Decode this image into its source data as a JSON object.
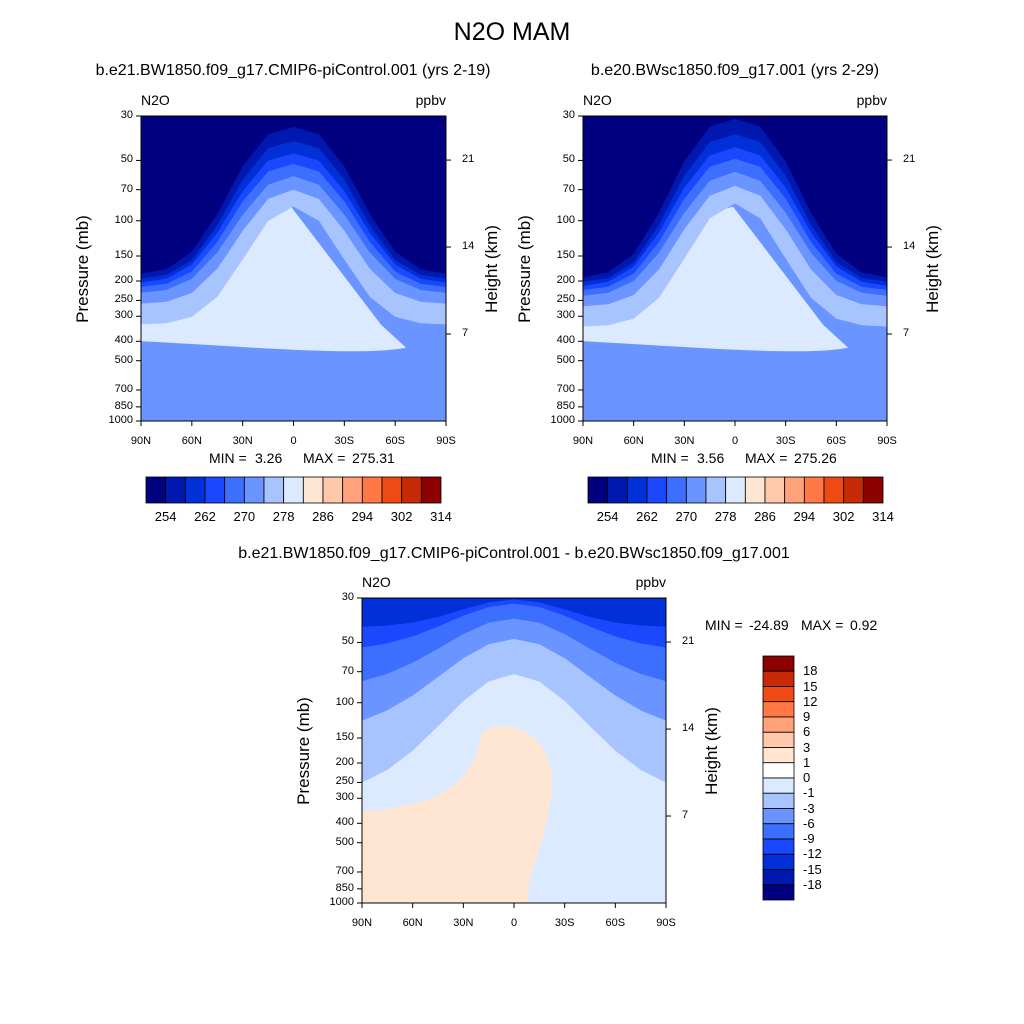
{
  "title": "N2O MAM",
  "chart_data": [
    {
      "type": "heatmap",
      "title": "b.e21.BW1850.f09_g17.CMIP6-piControl.001 (yrs 2-19)",
      "corner_left": "N2O",
      "corner_right": "ppbv",
      "ylabel": "Pressure (mb)",
      "ylabel_right": "Height (km)",
      "x_ticks": [
        "90N",
        "60N",
        "30N",
        "0",
        "30S",
        "60S",
        "90S"
      ],
      "y_ticks": [
        "30",
        "50",
        "70",
        "100",
        "150",
        "200",
        "250",
        "300",
        "400",
        "500",
        "700",
        "850",
        "1000"
      ],
      "y_right_ticks": [
        "21",
        "14",
        "7"
      ],
      "stats": {
        "min_label": "MIN =",
        "min": "3.26",
        "max_label": "MAX =",
        "max": "275.31"
      },
      "colorbar": {
        "labels": [
          "254",
          "262",
          "270",
          "278",
          "286",
          "294",
          "302",
          "314"
        ],
        "colors": [
          "#000080",
          "#0018b0",
          "#0030d8",
          "#1a48ff",
          "#3d6fff",
          "#6a94ff",
          "#a8c4ff",
          "#dceaff",
          "#ffe6d2",
          "#ffc8aa",
          "#ffa27a",
          "#ff7846",
          "#f04a14",
          "#c82a08",
          "#8c0000"
        ]
      }
    },
    {
      "type": "heatmap",
      "title": "b.e20.BWsc1850.f09_g17.001 (yrs 2-29)",
      "corner_left": "N2O",
      "corner_right": "ppbv",
      "ylabel": "Pressure (mb)",
      "ylabel_right": "Height (km)",
      "x_ticks": [
        "90N",
        "60N",
        "30N",
        "0",
        "30S",
        "60S",
        "90S"
      ],
      "y_ticks": [
        "30",
        "50",
        "70",
        "100",
        "150",
        "200",
        "250",
        "300",
        "400",
        "500",
        "700",
        "850",
        "1000"
      ],
      "y_right_ticks": [
        "21",
        "14",
        "7"
      ],
      "stats": {
        "min_label": "MIN =",
        "min": "3.56",
        "max_label": "MAX =",
        "max": "275.26"
      },
      "colorbar": {
        "labels": [
          "254",
          "262",
          "270",
          "278",
          "286",
          "294",
          "302",
          "314"
        ],
        "colors": [
          "#000080",
          "#0018b0",
          "#0030d8",
          "#1a48ff",
          "#3d6fff",
          "#6a94ff",
          "#a8c4ff",
          "#dceaff",
          "#ffe6d2",
          "#ffc8aa",
          "#ffa27a",
          "#ff7846",
          "#f04a14",
          "#c82a08",
          "#8c0000"
        ]
      }
    },
    {
      "type": "heatmap",
      "title": "b.e21.BW1850.f09_g17.CMIP6-piControl.001 - b.e20.BWsc1850.f09_g17.001",
      "corner_left": "N2O",
      "corner_right": "ppbv",
      "ylabel": "Pressure (mb)",
      "ylabel_right": "Height (km)",
      "x_ticks": [
        "90N",
        "60N",
        "30N",
        "0",
        "30S",
        "60S",
        "90S"
      ],
      "y_ticks": [
        "30",
        "50",
        "70",
        "100",
        "150",
        "200",
        "250",
        "300",
        "400",
        "500",
        "700",
        "850",
        "1000"
      ],
      "y_right_ticks": [
        "21",
        "14",
        "7"
      ],
      "stats": {
        "min_label": "MIN =",
        "min": "-24.89",
        "max_label": "MAX =",
        "max": "0.92"
      },
      "colorbar": {
        "labels": [
          "18",
          "15",
          "12",
          "9",
          "6",
          "3",
          "1",
          "0",
          "-1",
          "-3",
          "-6",
          "-9",
          "-12",
          "-15",
          "-18"
        ],
        "colors": [
          "#8c0000",
          "#c82a08",
          "#f04a14",
          "#ff7846",
          "#ffa27a",
          "#ffc8aa",
          "#ffe6d2",
          "#ffffff",
          "#dceaff",
          "#a8c4ff",
          "#6a94ff",
          "#3d6fff",
          "#1a48ff",
          "#0030d8",
          "#0018b0",
          "#000080"
        ]
      }
    }
  ]
}
